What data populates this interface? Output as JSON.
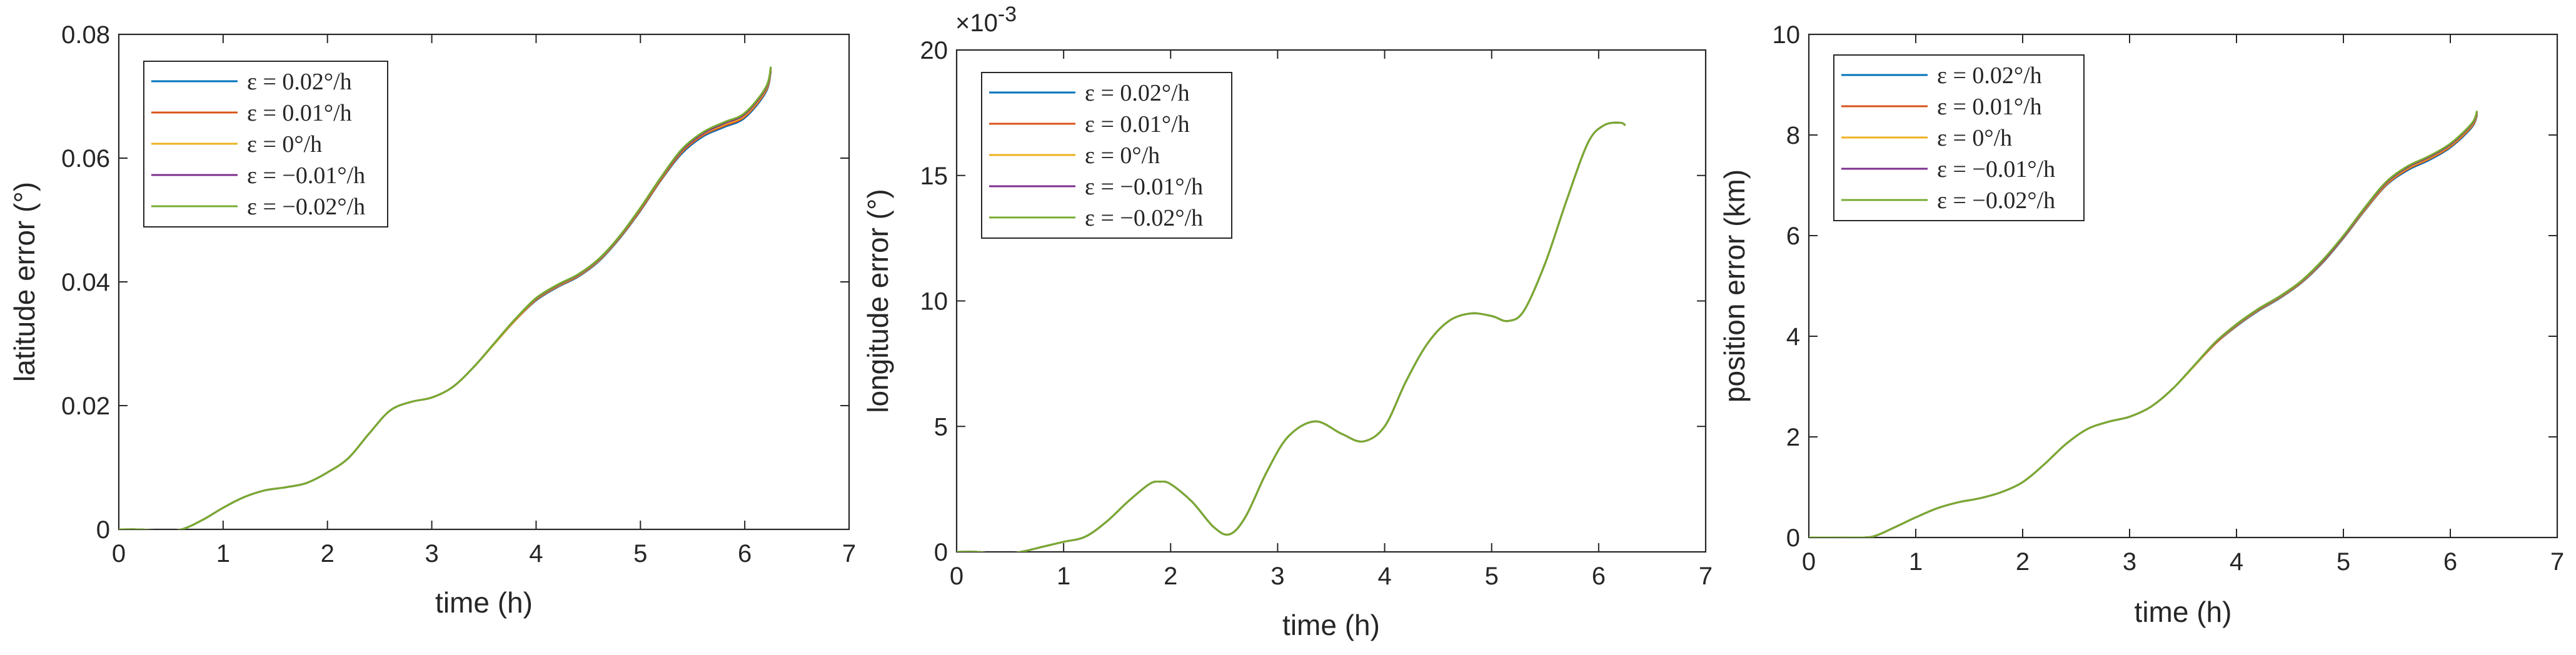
{
  "chart_data": [
    {
      "type": "line",
      "title": "",
      "xlabel": "time (h)",
      "ylabel": "latitude error (°)",
      "xlim": [
        0,
        7
      ],
      "ylim": [
        0,
        0.08
      ],
      "xticks": [
        "0",
        "1",
        "2",
        "3",
        "4",
        "5",
        "6",
        "7"
      ],
      "yticks": [
        "0",
        "0.02",
        "0.04",
        "0.06",
        "0.08"
      ],
      "exponent_label": "",
      "legend_position": "top-left",
      "x": [
        0,
        0.2,
        0.4,
        0.6,
        0.8,
        1.0,
        1.2,
        1.4,
        1.6,
        1.8,
        2.0,
        2.2,
        2.4,
        2.6,
        2.8,
        3.0,
        3.2,
        3.4,
        3.6,
        3.8,
        4.0,
        4.2,
        4.4,
        4.6,
        4.8,
        5.0,
        5.2,
        5.4,
        5.6,
        5.8,
        6.0,
        6.2,
        6.25
      ],
      "series": [
        {
          "name": "ε = 0.02°/h",
          "color": "#0072BD",
          "values": [
            0,
            0,
            -0.0002,
            0,
            0.0015,
            0.0035,
            0.0052,
            0.0063,
            0.0068,
            0.0075,
            0.0092,
            0.0115,
            0.0155,
            0.0192,
            0.0206,
            0.0213,
            0.023,
            0.0262,
            0.03,
            0.0338,
            0.037,
            0.0391,
            0.0408,
            0.0433,
            0.047,
            0.0515,
            0.0565,
            0.0608,
            0.0635,
            0.065,
            0.0665,
            0.0706,
            0.074
          ]
        },
        {
          "name": "ε = 0.01°/h",
          "color": "#D95319",
          "values": [
            0,
            0,
            -0.0002,
            0,
            0.0015,
            0.0035,
            0.0052,
            0.0063,
            0.0068,
            0.0075,
            0.0092,
            0.0115,
            0.0155,
            0.0192,
            0.0206,
            0.0213,
            0.023,
            0.0262,
            0.03,
            0.0338,
            0.0371,
            0.0392,
            0.0409,
            0.0434,
            0.0471,
            0.0516,
            0.0566,
            0.061,
            0.0637,
            0.0652,
            0.0667,
            0.0708,
            0.0742
          ]
        },
        {
          "name": "ε = 0°/h",
          "color": "#EDB120",
          "values": [
            0,
            0,
            -0.0002,
            0,
            0.0015,
            0.0035,
            0.0052,
            0.0063,
            0.0068,
            0.0075,
            0.0092,
            0.0115,
            0.0155,
            0.0192,
            0.0206,
            0.0213,
            0.023,
            0.0262,
            0.03,
            0.0339,
            0.0372,
            0.0393,
            0.041,
            0.0435,
            0.0472,
            0.0518,
            0.0568,
            0.0612,
            0.0639,
            0.0654,
            0.0669,
            0.071,
            0.0744
          ]
        },
        {
          "name": "ε = −0.01°/h",
          "color": "#7E2F8E",
          "values": [
            0,
            0,
            -0.0002,
            0,
            0.0015,
            0.0035,
            0.0052,
            0.0063,
            0.0068,
            0.0075,
            0.0092,
            0.0115,
            0.0155,
            0.0192,
            0.0206,
            0.0213,
            0.023,
            0.0262,
            0.0301,
            0.034,
            0.0373,
            0.0394,
            0.0411,
            0.0436,
            0.0473,
            0.0519,
            0.0569,
            0.0613,
            0.064,
            0.0656,
            0.0671,
            0.0712,
            0.0746
          ]
        },
        {
          "name": "ε = −0.02°/h",
          "color": "#77AC30",
          "values": [
            0,
            0,
            -0.0002,
            0,
            0.0015,
            0.0035,
            0.0052,
            0.0063,
            0.0068,
            0.0075,
            0.0092,
            0.0115,
            0.0155,
            0.0192,
            0.0206,
            0.0213,
            0.023,
            0.0262,
            0.0301,
            0.034,
            0.0374,
            0.0395,
            0.0412,
            0.0437,
            0.0474,
            0.052,
            0.057,
            0.0615,
            0.0642,
            0.0658,
            0.0673,
            0.0714,
            0.0748
          ]
        }
      ]
    },
    {
      "type": "line",
      "title": "",
      "xlabel": "time (h)",
      "ylabel": "longitude error (°)",
      "xlim": [
        0,
        7
      ],
      "ylim": [
        0,
        20
      ],
      "xticks": [
        "0",
        "1",
        "2",
        "3",
        "4",
        "5",
        "6",
        "7"
      ],
      "yticks": [
        "0",
        "5",
        "10",
        "15",
        "20"
      ],
      "exponent_label": "×10^-3",
      "legend_position": "top-left",
      "x": [
        0,
        0.2,
        0.4,
        0.6,
        0.8,
        1.0,
        1.2,
        1.4,
        1.6,
        1.8,
        1.9,
        2.0,
        2.2,
        2.4,
        2.55,
        2.7,
        2.9,
        3.1,
        3.35,
        3.6,
        3.8,
        4.0,
        4.2,
        4.4,
        4.6,
        4.8,
        5.0,
        5.15,
        5.3,
        5.5,
        5.7,
        5.9,
        6.05,
        6.2,
        6.25
      ],
      "series": [
        {
          "name": "ε = 0.02°/h",
          "color": "#0072BD",
          "values": [
            0,
            0,
            -0.1,
            0,
            0.2,
            0.4,
            0.6,
            1.2,
            2.0,
            2.7,
            2.8,
            2.7,
            2.0,
            1.0,
            0.7,
            1.4,
            3.2,
            4.6,
            5.2,
            4.7,
            4.4,
            5.0,
            6.8,
            8.3,
            9.2,
            9.5,
            9.4,
            9.2,
            9.6,
            11.5,
            14.0,
            16.3,
            17.0,
            17.1,
            17.0
          ]
        },
        {
          "name": "ε = 0.01°/h",
          "color": "#D95319",
          "values": [
            0,
            0,
            -0.1,
            0,
            0.2,
            0.4,
            0.6,
            1.2,
            2.0,
            2.7,
            2.8,
            2.7,
            2.0,
            1.0,
            0.7,
            1.4,
            3.2,
            4.6,
            5.2,
            4.7,
            4.4,
            5.0,
            6.8,
            8.3,
            9.2,
            9.5,
            9.4,
            9.2,
            9.6,
            11.5,
            14.0,
            16.3,
            17.0,
            17.1,
            17.0
          ]
        },
        {
          "name": "ε = 0°/h",
          "color": "#EDB120",
          "values": [
            0,
            0,
            -0.1,
            0,
            0.2,
            0.4,
            0.6,
            1.2,
            2.0,
            2.7,
            2.8,
            2.7,
            2.0,
            1.0,
            0.7,
            1.4,
            3.2,
            4.6,
            5.2,
            4.7,
            4.4,
            5.0,
            6.8,
            8.3,
            9.2,
            9.5,
            9.4,
            9.2,
            9.6,
            11.5,
            14.0,
            16.3,
            17.0,
            17.1,
            17.0
          ]
        },
        {
          "name": "ε = −0.01°/h",
          "color": "#7E2F8E",
          "values": [
            0,
            0,
            -0.1,
            0,
            0.2,
            0.4,
            0.6,
            1.2,
            2.0,
            2.7,
            2.8,
            2.7,
            2.0,
            1.0,
            0.7,
            1.4,
            3.2,
            4.6,
            5.2,
            4.7,
            4.4,
            5.0,
            6.8,
            8.3,
            9.2,
            9.5,
            9.4,
            9.2,
            9.6,
            11.5,
            14.0,
            16.3,
            17.0,
            17.1,
            17.0
          ]
        },
        {
          "name": "ε = −0.02°/h",
          "color": "#77AC30",
          "values": [
            0,
            0,
            -0.1,
            0,
            0.2,
            0.4,
            0.6,
            1.2,
            2.0,
            2.7,
            2.8,
            2.7,
            2.0,
            1.0,
            0.7,
            1.4,
            3.2,
            4.6,
            5.2,
            4.7,
            4.4,
            5.0,
            6.8,
            8.3,
            9.2,
            9.5,
            9.4,
            9.2,
            9.6,
            11.5,
            14.0,
            16.3,
            17.0,
            17.1,
            17.0
          ]
        }
      ]
    },
    {
      "type": "line",
      "title": "",
      "xlabel": "time (h)",
      "ylabel": "position error (km)",
      "xlim": [
        0,
        7
      ],
      "ylim": [
        0,
        10
      ],
      "xticks": [
        "0",
        "1",
        "2",
        "3",
        "4",
        "5",
        "6",
        "7"
      ],
      "yticks": [
        "0",
        "2",
        "4",
        "6",
        "8",
        "10"
      ],
      "exponent_label": "",
      "legend_position": "top-left",
      "x": [
        0,
        0.2,
        0.4,
        0.6,
        0.8,
        1.0,
        1.2,
        1.4,
        1.6,
        1.8,
        2.0,
        2.2,
        2.4,
        2.6,
        2.8,
        3.0,
        3.2,
        3.4,
        3.6,
        3.8,
        4.0,
        4.2,
        4.4,
        4.6,
        4.8,
        5.0,
        5.2,
        5.4,
        5.6,
        5.8,
        6.0,
        6.2,
        6.25
      ],
      "series": [
        {
          "name": "ε = 0.02°/h",
          "color": "#0072BD",
          "values": [
            0,
            0,
            0,
            0.02,
            0.2,
            0.4,
            0.58,
            0.7,
            0.78,
            0.9,
            1.1,
            1.45,
            1.85,
            2.15,
            2.3,
            2.4,
            2.6,
            2.95,
            3.4,
            3.85,
            4.2,
            4.5,
            4.75,
            5.05,
            5.45,
            5.95,
            6.5,
            7.0,
            7.3,
            7.5,
            7.75,
            8.15,
            8.4
          ]
        },
        {
          "name": "ε = 0.01°/h",
          "color": "#D95319",
          "values": [
            0,
            0,
            0,
            0.02,
            0.2,
            0.4,
            0.58,
            0.7,
            0.78,
            0.9,
            1.1,
            1.45,
            1.85,
            2.15,
            2.3,
            2.4,
            2.6,
            2.95,
            3.4,
            3.85,
            4.21,
            4.51,
            4.76,
            5.06,
            5.46,
            5.96,
            6.51,
            7.01,
            7.32,
            7.52,
            7.77,
            8.17,
            8.42
          ]
        },
        {
          "name": "ε = 0°/h",
          "color": "#EDB120",
          "values": [
            0,
            0,
            0,
            0.02,
            0.2,
            0.4,
            0.58,
            0.7,
            0.78,
            0.9,
            1.1,
            1.45,
            1.85,
            2.15,
            2.3,
            2.4,
            2.6,
            2.95,
            3.4,
            3.86,
            4.22,
            4.52,
            4.77,
            5.07,
            5.47,
            5.97,
            6.52,
            7.03,
            7.34,
            7.54,
            7.79,
            8.19,
            8.44
          ]
        },
        {
          "name": "ε = −0.01°/h",
          "color": "#7E2F8E",
          "values": [
            0,
            0,
            0,
            0.02,
            0.2,
            0.4,
            0.58,
            0.7,
            0.78,
            0.9,
            1.1,
            1.45,
            1.85,
            2.15,
            2.3,
            2.4,
            2.6,
            2.95,
            3.41,
            3.87,
            4.23,
            4.53,
            4.78,
            5.08,
            5.48,
            5.98,
            6.54,
            7.05,
            7.36,
            7.56,
            7.81,
            8.21,
            8.46
          ]
        },
        {
          "name": "ε = −0.02°/h",
          "color": "#77AC30",
          "values": [
            0,
            0,
            0,
            0.02,
            0.2,
            0.4,
            0.58,
            0.7,
            0.78,
            0.9,
            1.1,
            1.45,
            1.85,
            2.15,
            2.3,
            2.4,
            2.6,
            2.95,
            3.41,
            3.88,
            4.24,
            4.54,
            4.79,
            5.09,
            5.5,
            6.0,
            6.56,
            7.07,
            7.38,
            7.58,
            7.83,
            8.23,
            8.48
          ]
        }
      ]
    }
  ]
}
